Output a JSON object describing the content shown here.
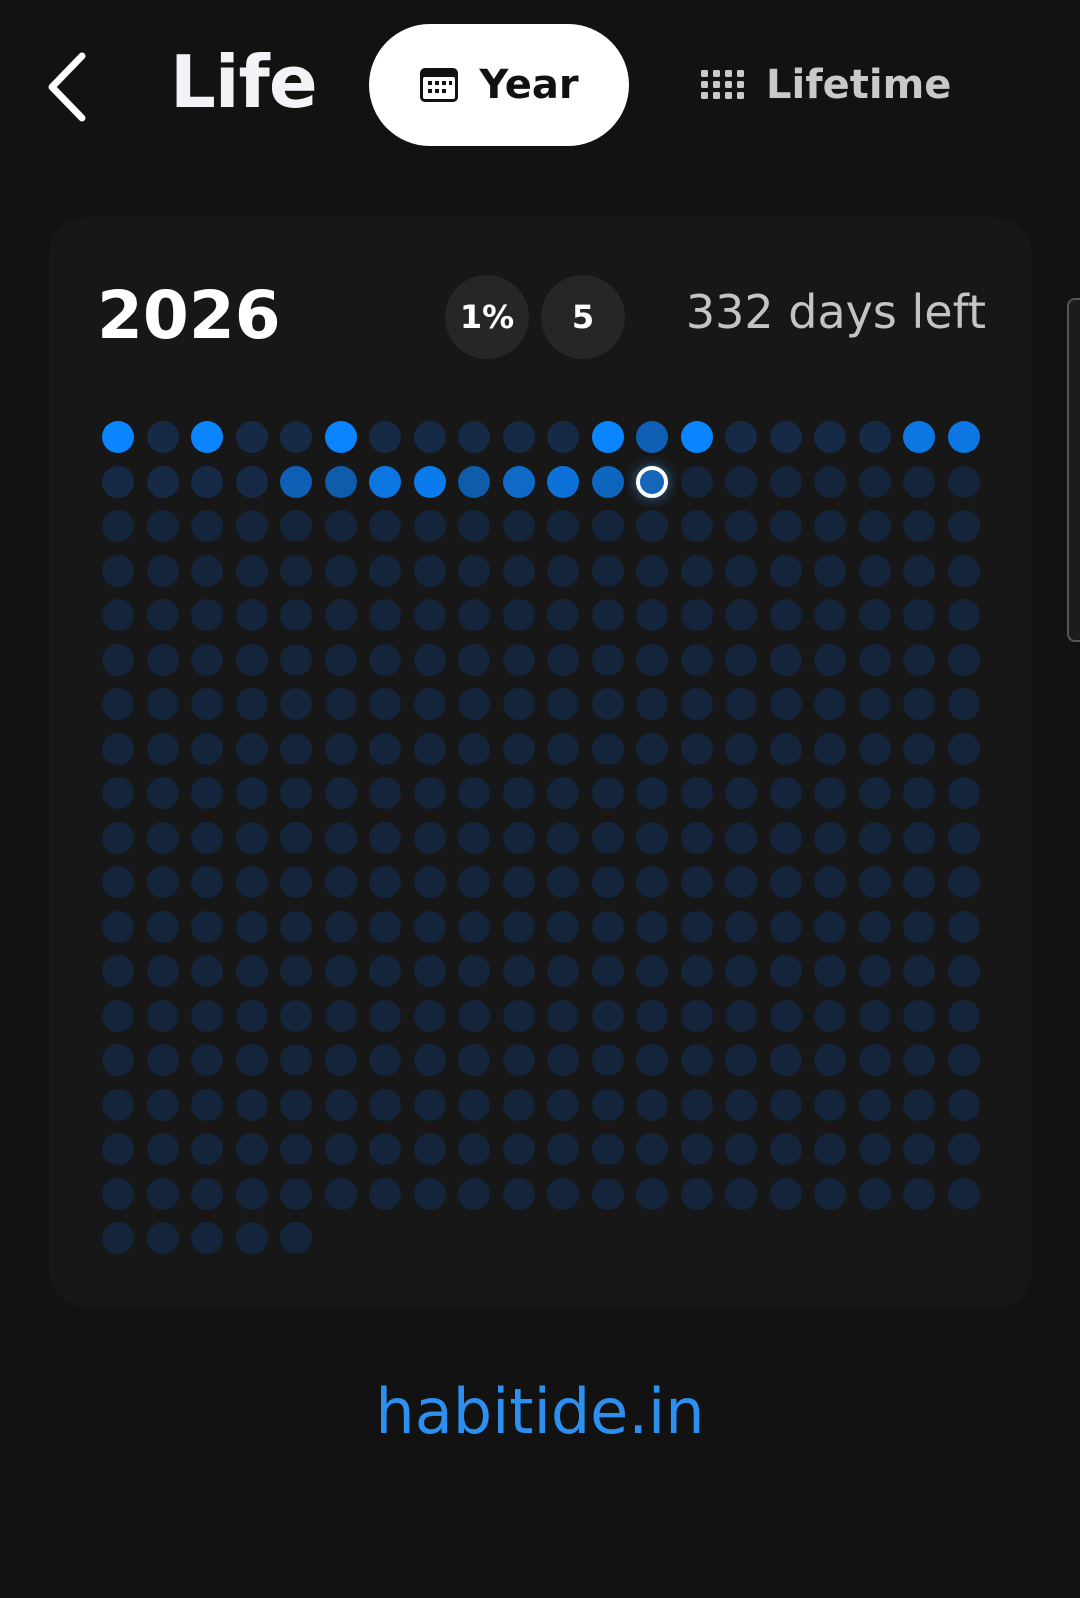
{
  "header": {
    "title": "Life",
    "back_icon": "chevron-left-icon",
    "tabs": [
      {
        "label": "Year",
        "icon": "calendar-icon",
        "active": true
      },
      {
        "label": "Lifetime",
        "icon": "dot-grid-icon",
        "active": false
      }
    ]
  },
  "card": {
    "year": "2026",
    "percent_badge": "1%",
    "streak_badge": "5",
    "days_left": "332 days left",
    "total_days": 365,
    "current_day": 33,
    "past_day_intensity": [
      1,
      0,
      1,
      0,
      0,
      1,
      0,
      0,
      0,
      0,
      0,
      1,
      0.6,
      1,
      0,
      0,
      0,
      0,
      0.85,
      0.85,
      0,
      0,
      0,
      0,
      0.6,
      0.55,
      0.85,
      0.9,
      0.55,
      0.7,
      0.8,
      0.65
    ],
    "colors": {
      "bright": "#0a84ff",
      "empty_past": "#162a45",
      "future": "#14243a",
      "current_ring": "#ffffff"
    }
  },
  "footer": {
    "link": "habitide.in"
  }
}
